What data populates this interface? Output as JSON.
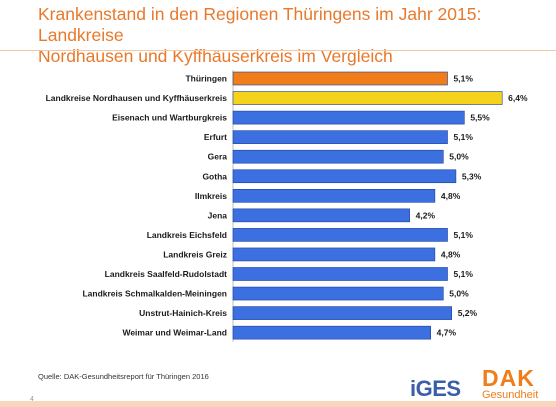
{
  "title": {
    "line1": "Krankenstand in den Regionen Thüringens im Jahr 2015: Landkreise",
    "line2": "Nordhausen und Kyffhäuserkreis im Vergleich"
  },
  "chart_data": {
    "type": "bar",
    "orientation": "horizontal",
    "categories": [
      "Thüringen",
      "Landkreise Nordhausen und Kyffhäuserkreis",
      "Eisenach und Wartburgkreis",
      "Erfurt",
      "Gera",
      "Gotha",
      "Ilmkreis",
      "Jena",
      "Landkreis Eichsfeld",
      "Landkreis Greiz",
      "Landkreis Saalfeld-Rudolstadt",
      "Landkreis Schmalkalden-Meiningen",
      "Unstrut-Hainich-Kreis",
      "Weimar und Weimar-Land"
    ],
    "values": [
      5.1,
      6.4,
      5.5,
      5.1,
      5.0,
      5.3,
      4.8,
      4.2,
      5.1,
      4.8,
      5.1,
      5.0,
      5.2,
      4.7
    ],
    "value_labels": [
      "5,1%",
      "6,4%",
      "5,5%",
      "5,1%",
      "5,0%",
      "5,3%",
      "4,8%",
      "4,2%",
      "5,1%",
      "4,8%",
      "5,1%",
      "5,0%",
      "5,2%",
      "4,7%"
    ],
    "bar_colors": [
      "#f07d1a",
      "#f5d21c",
      "#3c6fe0",
      "#3c6fe0",
      "#3c6fe0",
      "#3c6fe0",
      "#3c6fe0",
      "#3c6fe0",
      "#3c6fe0",
      "#3c6fe0",
      "#3c6fe0",
      "#3c6fe0",
      "#3c6fe0",
      "#3c6fe0"
    ],
    "xlim": [
      0,
      6.8
    ],
    "grid": false,
    "legend": "none"
  },
  "source": "Quelle: DAK-Gesundheitsreport für Thüringen 2016",
  "page_number": "4",
  "logos": {
    "iges": "iGES",
    "dak_main": "DAK",
    "dak_sub": "Gesundheit"
  },
  "colors": {
    "accent": "#e8792b",
    "highlight": "#f5d21c",
    "bar": "#3c6fe0"
  }
}
